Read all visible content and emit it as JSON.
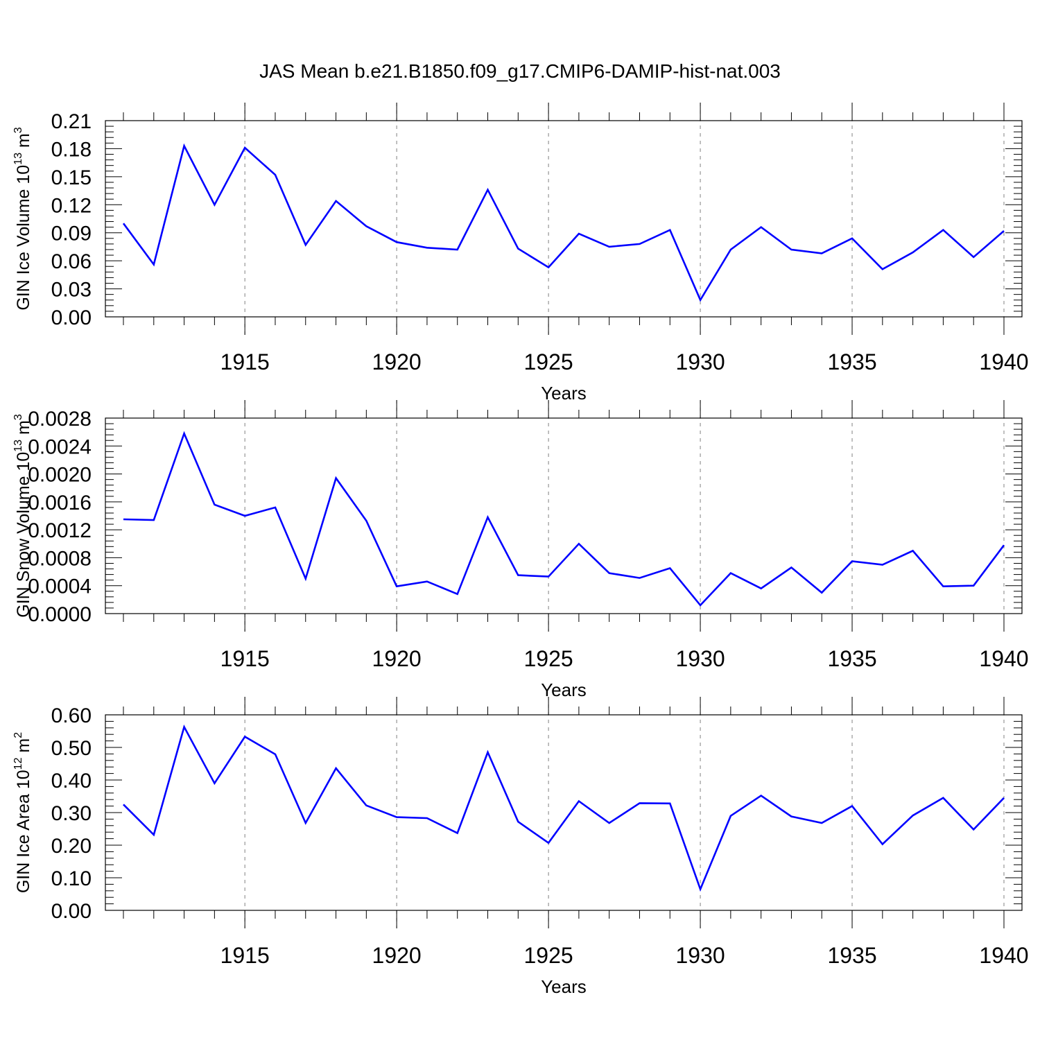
{
  "title": "JAS Mean b.e21.B1850.f09_g17.CMIP6-DAMIP-hist-nat.003",
  "style": {
    "line_color": "#0000ff",
    "axis_color": "#000000",
    "grid_color": "#808080"
  },
  "chart_data": [
    {
      "type": "line",
      "ylabel": "GIN Ice Volume 10",
      "ylabel_sup": "13",
      "ylabel_unit": " m",
      "ylabel_unit_sup": "3",
      "xlabel": "Years",
      "xlim": [
        1911,
        1940
      ],
      "ylim": [
        0,
        0.21
      ],
      "yticks": [
        0.0,
        0.03,
        0.06,
        0.09,
        0.12,
        0.15,
        0.18,
        0.21
      ],
      "ytick_labels": [
        "0.00",
        "0.03",
        "0.06",
        "0.09",
        "0.12",
        "0.15",
        "0.18",
        "0.21"
      ],
      "xticks": [
        1915,
        1920,
        1925,
        1930,
        1935,
        1940
      ],
      "xtick_labels": [
        "1915",
        "1920",
        "1925",
        "1930",
        "1935",
        "1940"
      ],
      "grid": "vertical dashed at labeled years",
      "series": [
        {
          "x": [
            1911,
            1912,
            1913,
            1914,
            1915,
            1916,
            1917,
            1918,
            1919,
            1920,
            1921,
            1922,
            1923,
            1924,
            1925,
            1926,
            1927,
            1928,
            1929,
            1930,
            1931,
            1932,
            1933,
            1934,
            1935,
            1936,
            1937,
            1938,
            1939,
            1940
          ],
          "values": [
            0.1,
            0.056,
            0.183,
            0.12,
            0.181,
            0.152,
            0.077,
            0.124,
            0.097,
            0.08,
            0.074,
            0.072,
            0.136,
            0.073,
            0.053,
            0.089,
            0.075,
            0.078,
            0.093,
            0.018,
            0.072,
            0.096,
            0.072,
            0.068,
            0.084,
            0.051,
            0.069,
            0.093,
            0.064,
            0.092
          ]
        }
      ]
    },
    {
      "type": "line",
      "ylabel": "GIN Snow Volume 10",
      "ylabel_sup": "13",
      "ylabel_unit": " m",
      "ylabel_unit_sup": "3",
      "xlabel": "Years",
      "xlim": [
        1911,
        1940
      ],
      "ylim": [
        0,
        0.0028
      ],
      "yticks": [
        0.0,
        0.0004,
        0.0008,
        0.0012,
        0.0016,
        0.002,
        0.0024,
        0.0028
      ],
      "ytick_labels": [
        "0.0000",
        "0.0004",
        "0.0008",
        "0.0012",
        "0.0016",
        "0.0020",
        "0.0024",
        "0.0028"
      ],
      "xticks": [
        1915,
        1920,
        1925,
        1930,
        1935,
        1940
      ],
      "xtick_labels": [
        "1915",
        "1920",
        "1925",
        "1930",
        "1935",
        "1940"
      ],
      "grid": "vertical dashed at labeled years",
      "series": [
        {
          "x": [
            1911,
            1912,
            1913,
            1914,
            1915,
            1916,
            1917,
            1918,
            1919,
            1920,
            1921,
            1922,
            1923,
            1924,
            1925,
            1926,
            1927,
            1928,
            1929,
            1930,
            1931,
            1932,
            1933,
            1934,
            1935,
            1936,
            1937,
            1938,
            1939,
            1940
          ],
          "values": [
            0.00135,
            0.00134,
            0.00258,
            0.00156,
            0.0014,
            0.00152,
            0.0005,
            0.00194,
            0.00133,
            0.00039,
            0.00046,
            0.00028,
            0.00138,
            0.00055,
            0.00053,
            0.001,
            0.00058,
            0.00051,
            0.00065,
            0.00012,
            0.00058,
            0.00036,
            0.00066,
            0.0003,
            0.00075,
            0.0007,
            0.0009,
            0.00039,
            0.0004,
            0.00098
          ]
        }
      ]
    },
    {
      "type": "line",
      "ylabel": "GIN Ice Area 10",
      "ylabel_sup": "12",
      "ylabel_unit": " m",
      "ylabel_unit_sup": "2",
      "xlabel": "Years",
      "xlim": [
        1911,
        1940
      ],
      "ylim": [
        0,
        0.6
      ],
      "yticks": [
        0.0,
        0.1,
        0.2,
        0.3,
        0.4,
        0.5,
        0.6
      ],
      "ytick_labels": [
        "0.00",
        "0.10",
        "0.20",
        "0.30",
        "0.40",
        "0.50",
        "0.60"
      ],
      "xticks": [
        1915,
        1920,
        1925,
        1930,
        1935,
        1940
      ],
      "xtick_labels": [
        "1915",
        "1920",
        "1925",
        "1930",
        "1935",
        "1940"
      ],
      "grid": "vertical dashed at labeled years",
      "series": [
        {
          "x": [
            1911,
            1912,
            1913,
            1914,
            1915,
            1916,
            1917,
            1918,
            1919,
            1920,
            1921,
            1922,
            1923,
            1924,
            1925,
            1926,
            1927,
            1928,
            1929,
            1930,
            1931,
            1932,
            1933,
            1934,
            1935,
            1936,
            1937,
            1938,
            1939,
            1940
          ],
          "values": [
            0.325,
            0.232,
            0.563,
            0.39,
            0.533,
            0.479,
            0.268,
            0.436,
            0.322,
            0.286,
            0.283,
            0.237,
            0.485,
            0.272,
            0.207,
            0.335,
            0.268,
            0.329,
            0.328,
            0.065,
            0.29,
            0.352,
            0.288,
            0.268,
            0.32,
            0.203,
            0.291,
            0.345,
            0.248,
            0.345
          ]
        }
      ]
    }
  ]
}
